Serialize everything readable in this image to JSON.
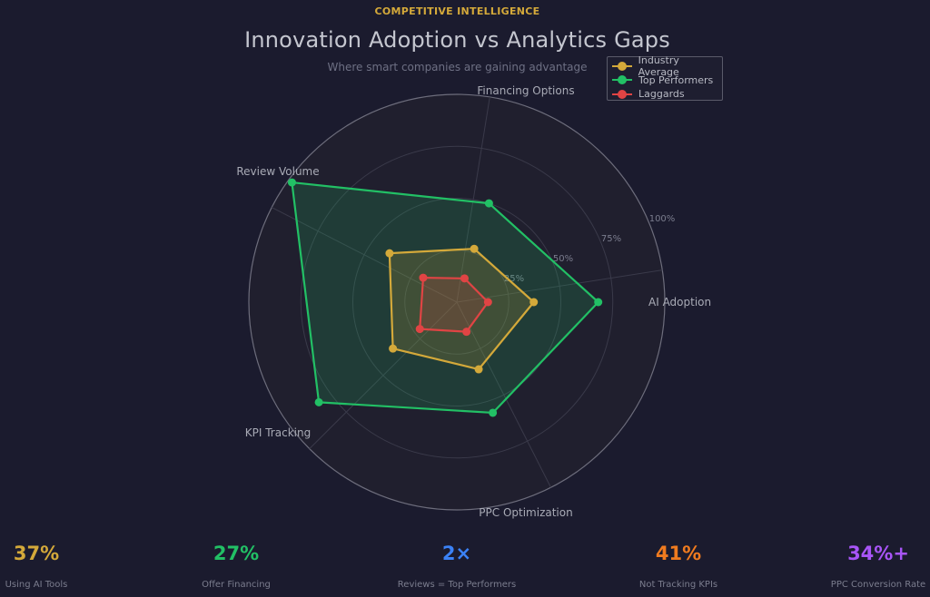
{
  "header": {
    "eyebrow": "COMPETITIVE INTELLIGENCE",
    "title": "Innovation Adoption vs Analytics Gaps",
    "subtitle": "Where smart companies are gaining advantage",
    "eyebrow_color": "#d4a93a"
  },
  "chart_data": {
    "type": "radar",
    "categories": [
      "AI Adoption",
      "Financing Options",
      "Review Volume",
      "KPI Tracking",
      "PPC Optimization"
    ],
    "rlim": [
      0,
      100
    ],
    "r_ticks": [
      25,
      50,
      75,
      100
    ],
    "r_tick_labels": [
      "25%",
      "50%",
      "75%",
      "100%"
    ],
    "grid": true,
    "legend_position": "top-right",
    "series": [
      {
        "name": "Industry Average",
        "color": "#d4a93a",
        "values": [
          37,
          27,
          40,
          38,
          34
        ]
      },
      {
        "name": "Top Performers",
        "color": "#22c065",
        "values": [
          68,
          50,
          98,
          82,
          56
        ]
      },
      {
        "name": "Laggards",
        "color": "#e04444",
        "values": [
          15,
          12,
          20,
          22,
          15
        ]
      }
    ]
  },
  "stats": [
    {
      "value": "37%",
      "label": "Using AI Tools",
      "color": "#d4a93a"
    },
    {
      "value": "27%",
      "label": "Offer Financing",
      "color": "#22c065"
    },
    {
      "value": "2×",
      "label": "Reviews = Top Performers",
      "color": "#3b82f6"
    },
    {
      "value": "41%",
      "label": "Not Tracking KPIs",
      "color": "#f07b1f"
    },
    {
      "value": "34%+",
      "label": "PPC Conversion Rate",
      "color": "#a855f7"
    }
  ]
}
